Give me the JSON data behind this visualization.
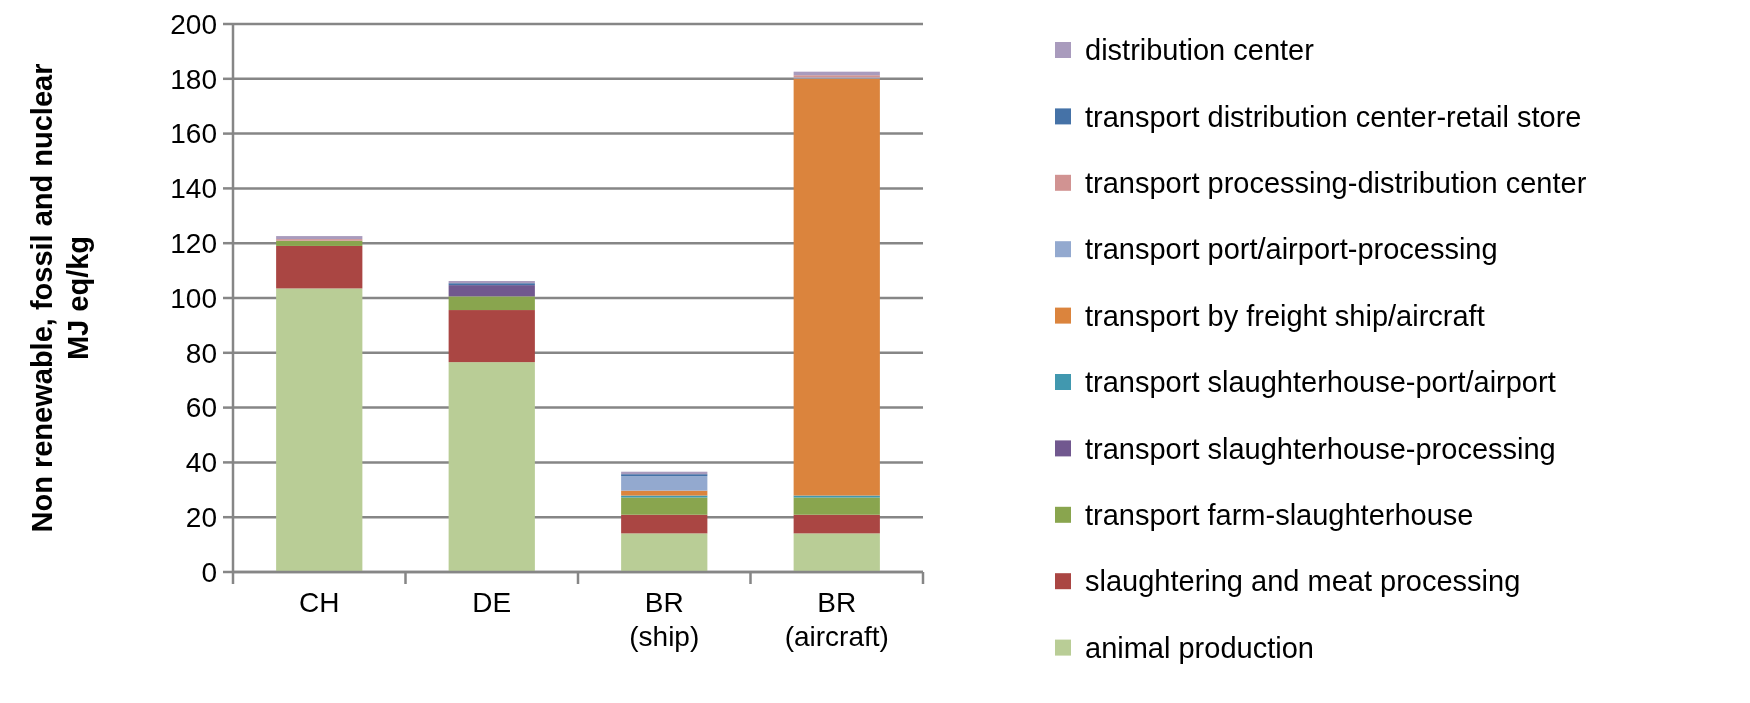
{
  "chart_data": {
    "type": "bar",
    "stacked": true,
    "ylabel": "Non renewable, fossil and nuclear\nMJ eq/kg",
    "categories": [
      "CH",
      "DE",
      "BR\n(ship)",
      "BR\n(aircraft)"
    ],
    "series": [
      {
        "name": "animal production",
        "color": "#b9cd96",
        "values": [
          103.5,
          76.6,
          14.1,
          14.1
        ]
      },
      {
        "name": "slaughtering and meat processing",
        "color": "#aa4643",
        "values": [
          15.5,
          19,
          6.8,
          6.8
        ]
      },
      {
        "name": "transport farm-slaughterhouse",
        "color": "#89a54e",
        "values": [
          1.9,
          5,
          6.3,
          6.3
        ]
      },
      {
        "name": "transport slaughterhouse-processing",
        "color": "#71588f",
        "values": [
          0,
          4.1,
          0,
          0
        ]
      },
      {
        "name": "transport slaughterhouse-port/airport",
        "color": "#4198af",
        "values": [
          0,
          0,
          0.7,
          0.7
        ]
      },
      {
        "name": "transport by freight ship/aircraft",
        "color": "#db843d",
        "values": [
          0,
          0,
          1.8,
          152.2
        ]
      },
      {
        "name": "transport port/airport-processing",
        "color": "#93a9cf",
        "values": [
          0,
          0,
          5.3,
          0.4
        ]
      },
      {
        "name": "transport processing-distribution center",
        "color": "#d19392",
        "values": [
          0.6,
          0,
          0,
          0.8
        ]
      },
      {
        "name": "transport distribution center-retail store",
        "color": "#4572a7",
        "values": [
          0,
          0.7,
          0.7,
          0
        ]
      },
      {
        "name": "distribution center",
        "color": "#a99bbd",
        "values": [
          1.1,
          0.8,
          0.9,
          1.3
        ]
      }
    ],
    "ylim": [
      0,
      200
    ],
    "yticks": [
      0,
      20,
      40,
      60,
      80,
      100,
      120,
      140,
      160,
      180,
      200
    ],
    "grid": "y",
    "legend": "right"
  }
}
